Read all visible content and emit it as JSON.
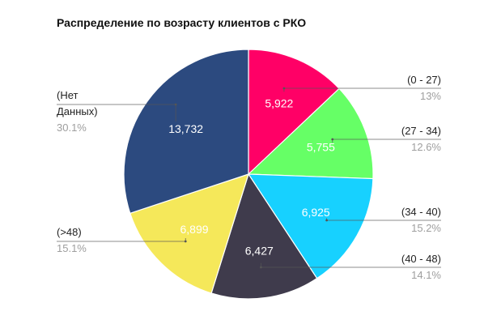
{
  "chart_data": {
    "type": "pie",
    "title": "Распределение по возрасту клиентов с РКО",
    "slices": [
      {
        "label": "(0 - 27)",
        "value": 5922,
        "value_label": "5,922",
        "percent_label": "13%",
        "color": "#ff0066"
      },
      {
        "label": "(27 - 34)",
        "value": 5755,
        "value_label": "5,755",
        "percent_label": "12.6%",
        "color": "#66ff66"
      },
      {
        "label": "(34 - 40)",
        "value": 6925,
        "value_label": "6,925",
        "percent_label": "15.2%",
        "color": "#17d1ff"
      },
      {
        "label": "(40 - 48)",
        "value": 6427,
        "value_label": "6,427",
        "percent_label": "14.1%",
        "color": "#3f3b4c"
      },
      {
        "label": "(>48)",
        "value": 6899,
        "value_label": "6,899",
        "percent_label": "15.1%",
        "color": "#f5e85a"
      },
      {
        "label_lines": [
          "(Нет",
          "Данных)"
        ],
        "value": 13732,
        "value_label": "13,732",
        "percent_label": "30.1%",
        "color": "#2c4a7f"
      }
    ],
    "legend": "outside labels with leader lines",
    "slice_label_color": "#ffffff"
  }
}
